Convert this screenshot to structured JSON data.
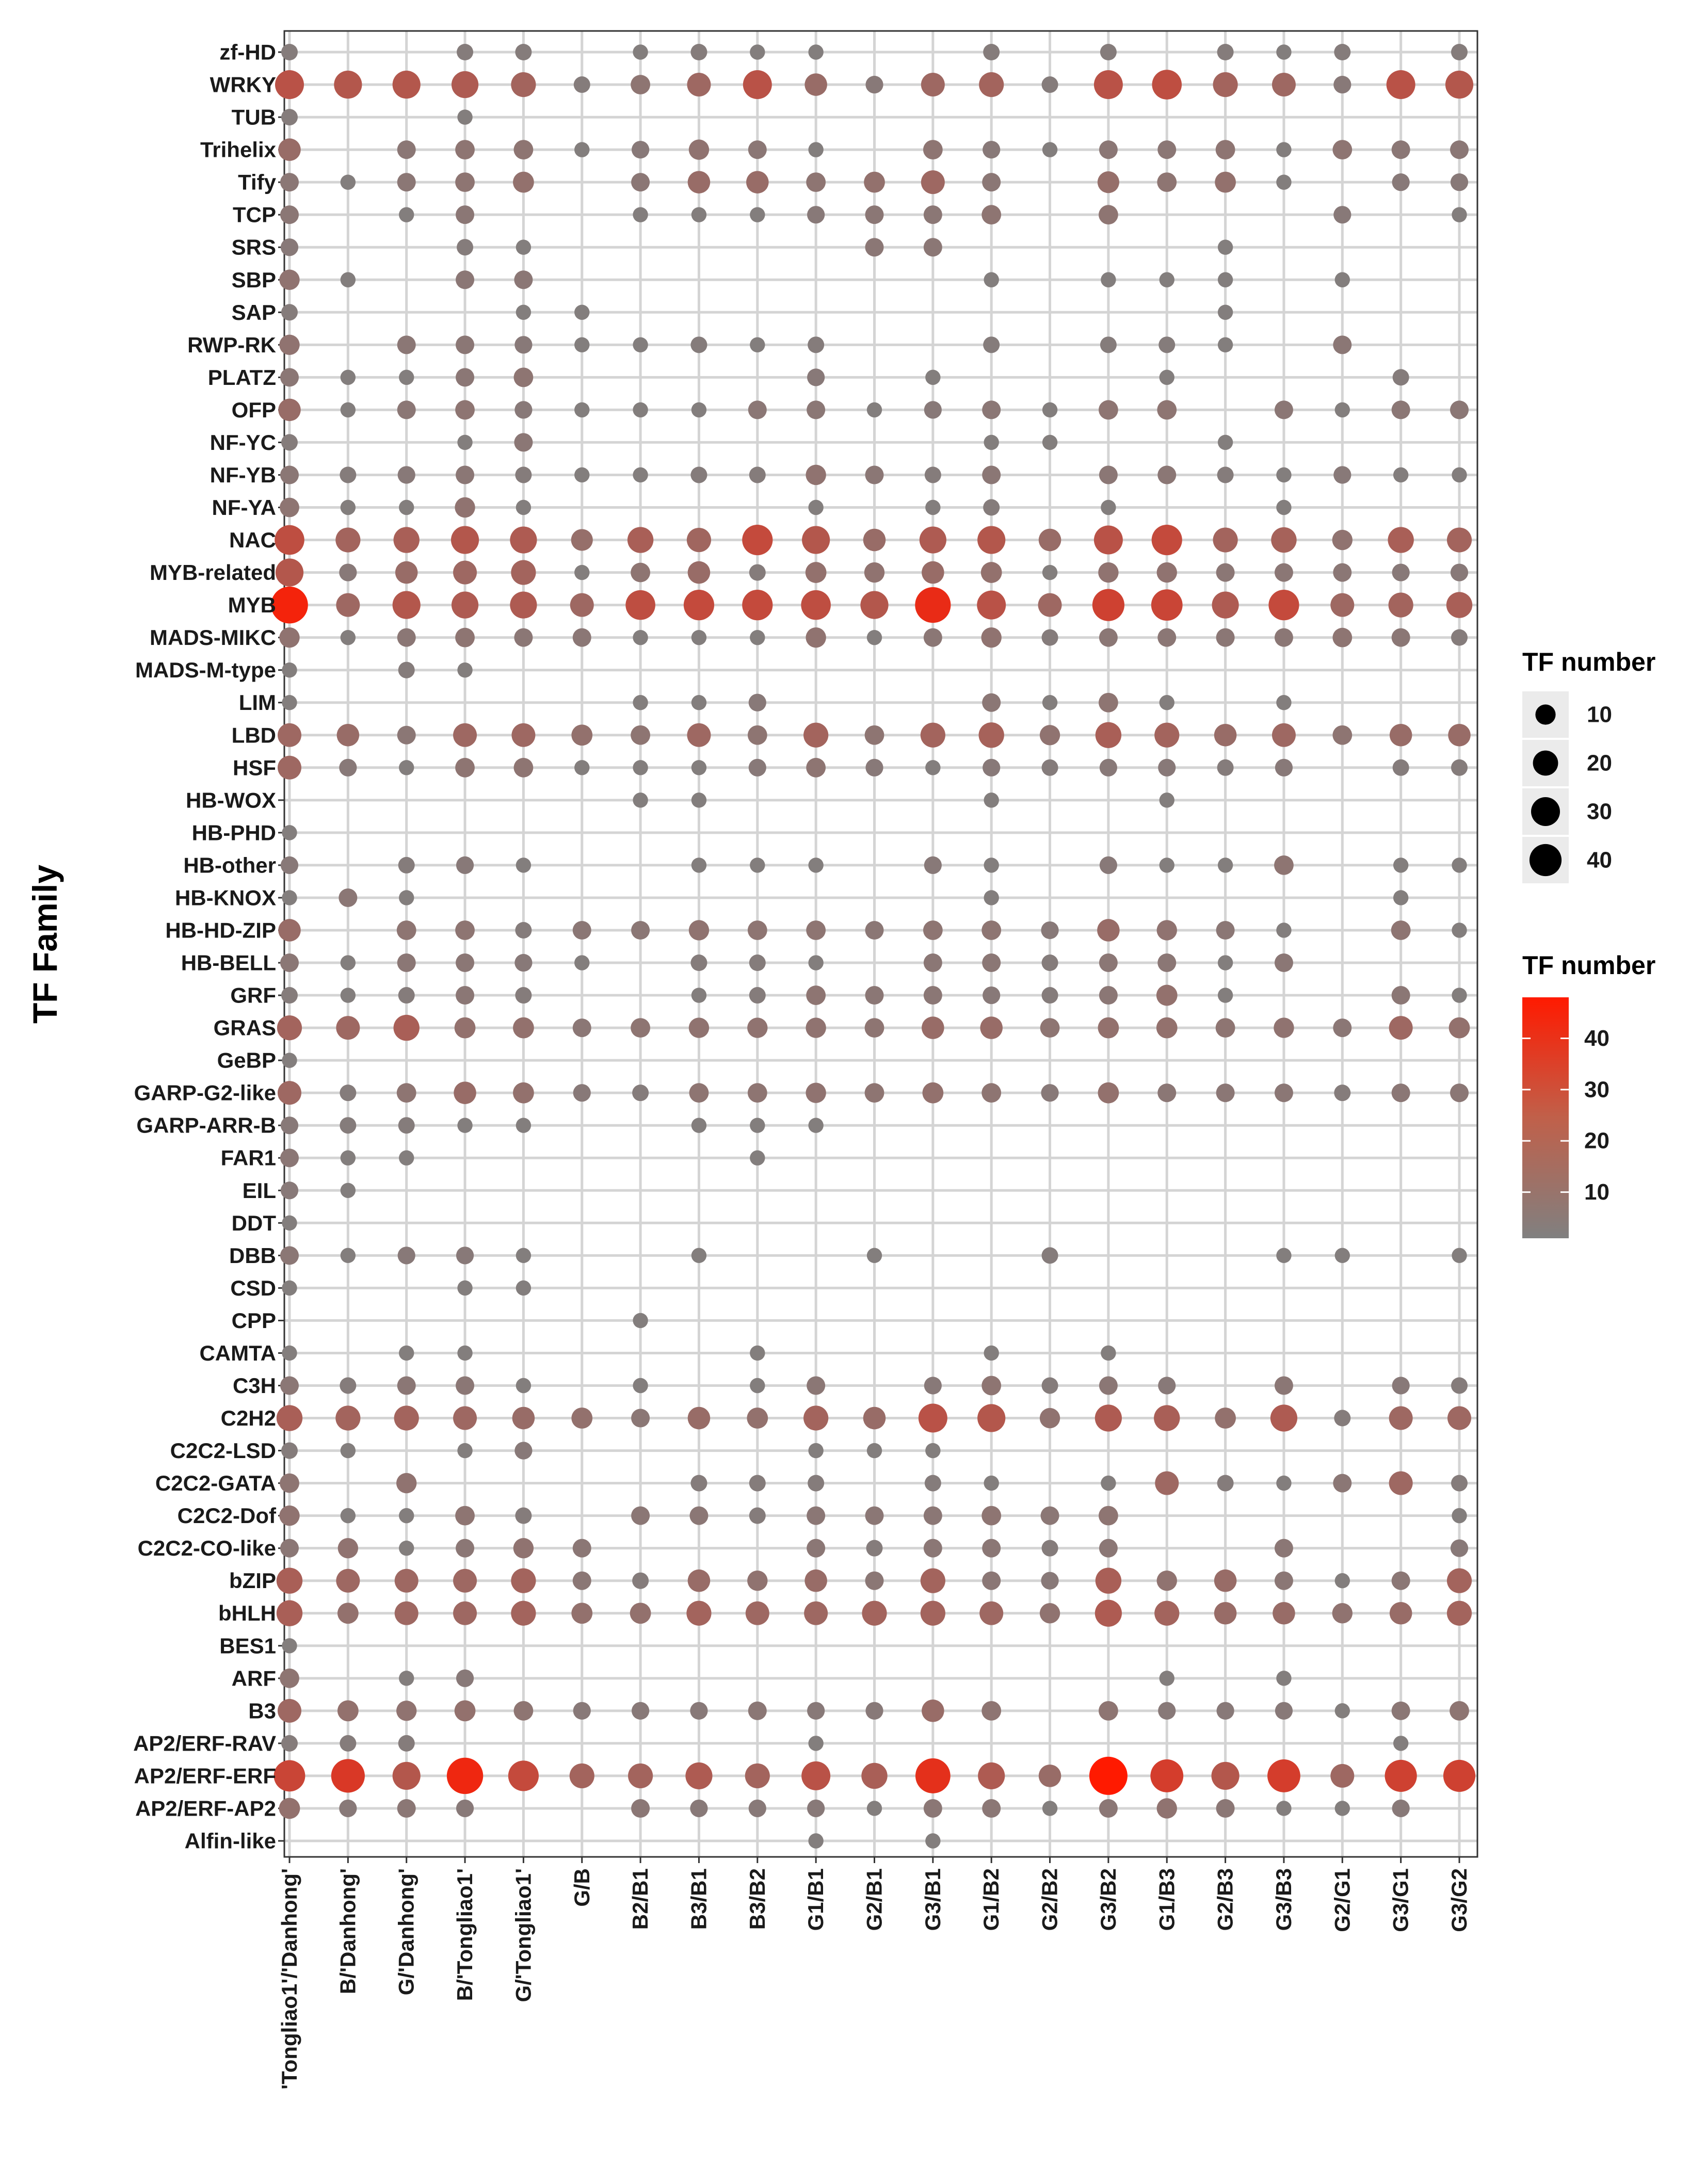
{
  "chart_data": {
    "type": "bubble-heatmap",
    "title": "",
    "xlabel": "",
    "ylabel": "TF Family",
    "grid": true,
    "categories_x": [
      "'Tongliao1'/'Danhong'",
      "B/'Danhong'",
      "G/'Danhong'",
      "B/'Tongliao1'",
      "G/'Tongliao1'",
      "G/B",
      "B2/B1",
      "B3/B1",
      "B3/B2",
      "G1/B1",
      "G2/B1",
      "G3/B1",
      "G1/B2",
      "G2/B2",
      "G3/B2",
      "G1/B3",
      "G2/B3",
      "G3/B3",
      "G2/G1",
      "G3/G1",
      "G3/G2"
    ],
    "categories_y": [
      "zf-HD",
      "WRKY",
      "TUB",
      "Trihelix",
      "Tify",
      "TCP",
      "SRS",
      "SBP",
      "SAP",
      "RWP-RK",
      "PLATZ",
      "OFP",
      "NF-YC",
      "NF-YB",
      "NF-YA",
      "NAC",
      "MYB-related",
      "MYB",
      "MADS-MIKC",
      "MADS-M-type",
      "LIM",
      "LBD",
      "HSF",
      "HB-WOX",
      "HB-PHD",
      "HB-other",
      "HB-KNOX",
      "HB-HD-ZIP",
      "HB-BELL",
      "GRF",
      "GRAS",
      "GeBP",
      "GARP-G2-like",
      "GARP-ARR-B",
      "FAR1",
      "EIL",
      "DDT",
      "DBB",
      "CSD",
      "CPP",
      "CAMTA",
      "C3H",
      "C2H2",
      "C2C2-LSD",
      "C2C2-GATA",
      "C2C2-Dof",
      "C2C2-CO-like",
      "bZIP",
      "bHLH",
      "BES1",
      "ARF",
      "B3",
      "AP2/ERF-RAV",
      "AP2/ERF-ERF",
      "AP2/ERF-AP2",
      "Alfin-like"
    ],
    "values": [
      [
        3,
        0,
        0,
        3,
        3,
        0,
        2,
        3,
        2,
        2,
        0,
        0,
        3,
        0,
        3,
        0,
        3,
        2,
        3,
        0,
        3
      ],
      [
        22,
        20,
        20,
        18,
        14,
        3,
        6,
        12,
        22,
        10,
        4,
        12,
        14,
        3,
        22,
        24,
        14,
        12,
        4,
        22,
        20
      ],
      [
        3,
        0,
        0,
        2,
        0,
        0,
        0,
        0,
        0,
        0,
        0,
        0,
        0,
        0,
        0,
        0,
        0,
        0,
        0,
        0,
        0
      ],
      [
        10,
        0,
        5,
        6,
        6,
        2,
        4,
        7,
        5,
        2,
        0,
        6,
        4,
        2,
        5,
        5,
        6,
        2,
        6,
        5,
        5
      ],
      [
        5,
        2,
        5,
        6,
        8,
        0,
        5,
        10,
        10,
        6,
        8,
        12,
        5,
        0,
        9,
        6,
        8,
        2,
        0,
        4,
        4
      ],
      [
        5,
        0,
        2,
        5,
        0,
        0,
        2,
        2,
        2,
        4,
        5,
        5,
        6,
        0,
        6,
        0,
        0,
        0,
        4,
        0,
        2
      ],
      [
        4,
        0,
        0,
        3,
        2,
        0,
        0,
        0,
        0,
        0,
        5,
        5,
        0,
        0,
        0,
        0,
        2,
        0,
        0,
        0,
        0
      ],
      [
        7,
        2,
        0,
        5,
        5,
        0,
        0,
        0,
        0,
        0,
        0,
        0,
        2,
        0,
        2,
        2,
        2,
        0,
        2,
        0,
        0
      ],
      [
        3,
        0,
        0,
        0,
        2,
        2,
        0,
        0,
        0,
        0,
        0,
        0,
        0,
        0,
        0,
        0,
        2,
        0,
        0,
        0,
        0
      ],
      [
        7,
        0,
        5,
        5,
        4,
        2,
        2,
        3,
        2,
        3,
        0,
        0,
        3,
        0,
        3,
        3,
        2,
        0,
        5,
        0,
        0
      ],
      [
        5,
        2,
        2,
        5,
        6,
        0,
        0,
        0,
        0,
        4,
        0,
        2,
        0,
        0,
        0,
        2,
        0,
        0,
        0,
        3,
        0
      ],
      [
        10,
        2,
        5,
        6,
        4,
        2,
        2,
        2,
        5,
        5,
        2,
        4,
        5,
        2,
        6,
        6,
        0,
        5,
        2,
        5,
        5
      ],
      [
        3,
        0,
        0,
        2,
        5,
        0,
        0,
        0,
        0,
        0,
        0,
        0,
        2,
        2,
        0,
        0,
        2,
        0,
        0,
        0,
        0
      ],
      [
        5,
        3,
        4,
        5,
        3,
        2,
        2,
        3,
        3,
        7,
        5,
        3,
        5,
        0,
        5,
        5,
        3,
        2,
        4,
        2,
        2
      ],
      [
        6,
        2,
        2,
        7,
        2,
        0,
        0,
        0,
        0,
        2,
        0,
        2,
        3,
        0,
        2,
        0,
        0,
        2,
        0,
        0,
        0
      ],
      [
        24,
        14,
        16,
        20,
        18,
        9,
        16,
        13,
        26,
        20,
        10,
        18,
        20,
        10,
        22,
        26,
        14,
        15,
        7,
        16,
        14
      ],
      [
        20,
        4,
        10,
        12,
        14,
        2,
        6,
        10,
        3,
        8,
        7,
        10,
        8,
        2,
        7,
        7,
        5,
        5,
        5,
        4,
        4
      ],
      [
        44,
        12,
        20,
        18,
        18,
        12,
        24,
        26,
        26,
        24,
        20,
        40,
        22,
        12,
        30,
        28,
        18,
        26,
        12,
        14,
        16
      ],
      [
        7,
        2,
        5,
        6,
        5,
        5,
        2,
        2,
        2,
        7,
        2,
        5,
        7,
        3,
        5,
        5,
        5,
        5,
        6,
        5,
        3
      ],
      [
        2,
        0,
        3,
        2,
        0,
        0,
        0,
        0,
        0,
        0,
        0,
        0,
        0,
        0,
        0,
        0,
        0,
        0,
        0,
        0,
        0
      ],
      [
        2,
        0,
        0,
        0,
        0,
        0,
        2,
        2,
        4,
        0,
        0,
        0,
        5,
        2,
        6,
        2,
        0,
        2,
        0,
        0,
        0
      ],
      [
        12,
        10,
        5,
        12,
        12,
        8,
        6,
        12,
        6,
        14,
        6,
        14,
        15,
        7,
        16,
        14,
        10,
        12,
        6,
        10,
        10
      ],
      [
        12,
        4,
        2,
        6,
        6,
        2,
        2,
        2,
        4,
        6,
        4,
        2,
        4,
        3,
        4,
        4,
        3,
        4,
        0,
        3,
        3
      ],
      [
        0,
        0,
        0,
        0,
        0,
        0,
        2,
        2,
        0,
        0,
        0,
        0,
        2,
        0,
        0,
        2,
        0,
        0,
        0,
        0,
        0
      ],
      [
        2,
        0,
        0,
        0,
        0,
        0,
        0,
        0,
        0,
        0,
        0,
        0,
        0,
        0,
        0,
        0,
        0,
        0,
        0,
        0,
        0
      ],
      [
        4,
        0,
        3,
        4,
        2,
        0,
        0,
        2,
        2,
        2,
        0,
        4,
        2,
        0,
        4,
        2,
        2,
        6,
        0,
        2,
        2
      ],
      [
        2,
        5,
        2,
        0,
        0,
        0,
        0,
        0,
        0,
        0,
        0,
        0,
        2,
        0,
        0,
        0,
        0,
        0,
        0,
        2,
        0
      ],
      [
        10,
        0,
        6,
        6,
        3,
        5,
        5,
        7,
        6,
        6,
        5,
        6,
        6,
        4,
        10,
        7,
        5,
        2,
        0,
        6,
        2
      ],
      [
        5,
        2,
        5,
        5,
        4,
        2,
        0,
        3,
        3,
        2,
        0,
        5,
        5,
        3,
        5,
        5,
        2,
        5,
        0,
        0,
        0
      ],
      [
        3,
        2,
        3,
        5,
        3,
        0,
        0,
        2,
        3,
        6,
        5,
        5,
        4,
        3,
        5,
        8,
        2,
        0,
        0,
        5,
        2
      ],
      [
        14,
        12,
        16,
        8,
        8,
        5,
        6,
        7,
        7,
        7,
        6,
        10,
        10,
        6,
        8,
        8,
        6,
        7,
        5,
        12,
        8
      ],
      [
        2,
        0,
        0,
        0,
        0,
        0,
        0,
        0,
        0,
        0,
        0,
        0,
        0,
        0,
        0,
        0,
        0,
        0,
        0,
        0,
        0
      ],
      [
        12,
        3,
        6,
        10,
        8,
        4,
        3,
        6,
        6,
        7,
        6,
        8,
        6,
        4,
        8,
        5,
        5,
        5,
        3,
        5,
        5
      ],
      [
        4,
        3,
        3,
        2,
        2,
        0,
        0,
        2,
        2,
        2,
        0,
        0,
        0,
        0,
        0,
        0,
        0,
        0,
        0,
        0,
        0
      ],
      [
        5,
        2,
        2,
        0,
        0,
        0,
        0,
        0,
        2,
        0,
        0,
        0,
        0,
        0,
        0,
        0,
        0,
        0,
        0,
        0,
        0
      ],
      [
        4,
        2,
        0,
        0,
        0,
        0,
        0,
        0,
        0,
        0,
        0,
        0,
        0,
        0,
        0,
        0,
        0,
        0,
        0,
        0,
        0
      ],
      [
        2,
        0,
        0,
        0,
        0,
        0,
        0,
        0,
        0,
        0,
        0,
        0,
        0,
        0,
        0,
        0,
        0,
        0,
        0,
        0,
        0
      ],
      [
        5,
        2,
        4,
        4,
        2,
        0,
        0,
        2,
        0,
        0,
        2,
        0,
        0,
        3,
        0,
        0,
        0,
        2,
        2,
        0,
        2
      ],
      [
        2,
        0,
        0,
        2,
        2,
        0,
        0,
        0,
        0,
        0,
        0,
        0,
        0,
        0,
        0,
        0,
        0,
        0,
        0,
        0,
        0
      ],
      [
        0,
        0,
        0,
        0,
        0,
        0,
        2,
        0,
        0,
        0,
        0,
        0,
        0,
        0,
        0,
        0,
        0,
        0,
        0,
        0,
        0
      ],
      [
        2,
        0,
        2,
        2,
        0,
        0,
        0,
        0,
        2,
        0,
        0,
        0,
        2,
        0,
        2,
        0,
        0,
        0,
        0,
        0,
        0
      ],
      [
        5,
        3,
        5,
        5,
        2,
        0,
        2,
        0,
        2,
        5,
        0,
        4,
        6,
        3,
        5,
        4,
        0,
        5,
        0,
        4,
        3
      ],
      [
        16,
        14,
        14,
        12,
        10,
        8,
        5,
        10,
        8,
        14,
        10,
        22,
        20,
        7,
        18,
        16,
        8,
        18,
        3,
        12,
        12
      ],
      [
        3,
        2,
        0,
        2,
        4,
        0,
        0,
        0,
        0,
        2,
        2,
        2,
        0,
        0,
        0,
        0,
        0,
        0,
        0,
        0,
        0
      ],
      [
        6,
        0,
        7,
        0,
        0,
        0,
        0,
        3,
        3,
        3,
        0,
        3,
        2,
        0,
        2,
        12,
        3,
        2,
        5,
        12,
        3
      ],
      [
        7,
        2,
        2,
        6,
        3,
        0,
        5,
        5,
        3,
        5,
        5,
        5,
        6,
        5,
        6,
        0,
        0,
        0,
        0,
        0,
        2
      ],
      [
        5,
        7,
        2,
        5,
        7,
        5,
        0,
        0,
        0,
        5,
        3,
        5,
        5,
        3,
        5,
        0,
        0,
        5,
        0,
        0,
        4
      ],
      [
        16,
        12,
        12,
        12,
        14,
        5,
        3,
        10,
        7,
        10,
        5,
        14,
        5,
        4,
        16,
        7,
        10,
        5,
        2,
        5,
        14
      ],
      [
        16,
        8,
        12,
        12,
        14,
        8,
        8,
        14,
        12,
        12,
        14,
        14,
        12,
        7,
        18,
        14,
        10,
        10,
        7,
        10,
        14
      ],
      [
        2,
        0,
        0,
        0,
        0,
        0,
        0,
        0,
        0,
        0,
        0,
        0,
        0,
        0,
        0,
        0,
        0,
        0,
        0,
        0,
        0
      ],
      [
        6,
        0,
        2,
        4,
        0,
        0,
        0,
        0,
        0,
        0,
        0,
        0,
        0,
        0,
        0,
        2,
        0,
        2,
        0,
        0,
        0
      ],
      [
        12,
        8,
        7,
        8,
        6,
        4,
        4,
        4,
        5,
        4,
        4,
        10,
        6,
        0,
        6,
        4,
        4,
        4,
        2,
        5,
        6
      ],
      [
        3,
        3,
        3,
        0,
        0,
        0,
        0,
        0,
        0,
        2,
        0,
        0,
        0,
        0,
        0,
        0,
        0,
        0,
        0,
        2,
        0
      ],
      [
        28,
        34,
        20,
        42,
        26,
        14,
        14,
        18,
        14,
        22,
        16,
        38,
        18,
        10,
        48,
        32,
        20,
        32,
        12,
        30,
        30
      ],
      [
        8,
        4,
        5,
        4,
        0,
        0,
        5,
        4,
        4,
        4,
        2,
        5,
        5,
        2,
        5,
        7,
        5,
        2,
        2,
        4,
        0
      ],
      [
        0,
        0,
        0,
        0,
        0,
        0,
        0,
        0,
        0,
        2,
        0,
        2,
        0,
        0,
        0,
        0,
        0,
        0,
        0,
        0,
        0
      ]
    ],
    "legend_size": {
      "title": "TF number",
      "entries": [
        10,
        20,
        30,
        40
      ]
    },
    "legend_color": {
      "title": "TF number",
      "ticks": [
        10,
        20,
        30,
        40
      ],
      "range": [
        1,
        48
      ],
      "low_color": "#808080",
      "high_color": "#ff1a00"
    },
    "size_range": [
      0,
      48
    ]
  }
}
